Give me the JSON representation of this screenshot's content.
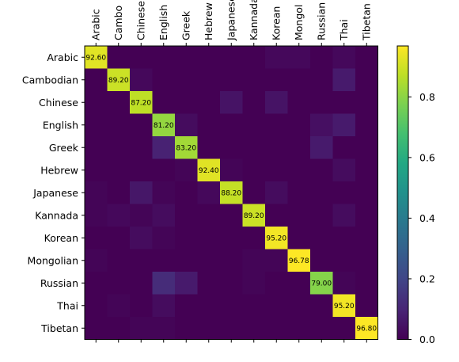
{
  "chart_data": {
    "type": "heatmap",
    "x_categories": [
      "Arabic",
      "Cambo",
      "Chinese",
      "English",
      "Greek",
      "Hebrew",
      "Japanese",
      "Kannada",
      "Korean",
      "Mongol",
      "Russian",
      "Thai",
      "Tibetan"
    ],
    "y_categories": [
      "Arabic",
      "Cambodian",
      "Chinese",
      "English",
      "Greek",
      "Hebrew",
      "Japanese",
      "Kannada",
      "Korean",
      "Mongolian",
      "Russian",
      "Thai",
      "Tibetan"
    ],
    "matrix": [
      [
        0.926,
        0.0,
        0.0,
        0.0,
        0.0,
        0.0,
        0.0,
        0.0,
        0.02,
        0.02,
        0.0,
        0.02,
        0.0
      ],
      [
        0.0,
        0.892,
        0.02,
        0.0,
        0.0,
        0.0,
        0.0,
        0.0,
        0.0,
        0.0,
        0.0,
        0.07,
        0.0
      ],
      [
        0.0,
        0.0,
        0.872,
        0.0,
        0.0,
        0.0,
        0.05,
        0.0,
        0.05,
        0.0,
        0.0,
        0.0,
        0.0
      ],
      [
        0.0,
        0.0,
        0.0,
        0.812,
        0.03,
        0.0,
        0.0,
        0.0,
        0.0,
        0.0,
        0.04,
        0.07,
        0.0
      ],
      [
        0.0,
        0.0,
        0.0,
        0.09,
        0.832,
        0.0,
        0.0,
        0.0,
        0.0,
        0.0,
        0.07,
        0.0,
        0.0
      ],
      [
        0.0,
        0.0,
        0.0,
        0.0,
        0.01,
        0.924,
        0.01,
        0.0,
        0.0,
        0.0,
        0.0,
        0.03,
        0.0
      ],
      [
        0.01,
        0.0,
        0.06,
        0.01,
        0.0,
        0.02,
        0.882,
        0.0,
        0.03,
        0.0,
        0.0,
        0.0,
        0.0
      ],
      [
        0.01,
        0.02,
        0.01,
        0.03,
        0.0,
        0.0,
        0.0,
        0.892,
        0.0,
        0.0,
        0.0,
        0.03,
        0.0
      ],
      [
        0.0,
        0.0,
        0.03,
        0.01,
        0.0,
        0.0,
        0.0,
        0.0,
        0.952,
        0.0,
        0.0,
        0.0,
        0.0
      ],
      [
        0.01,
        0.0,
        0.0,
        0.0,
        0.0,
        0.0,
        0.0,
        0.01,
        0.01,
        0.968,
        0.0,
        0.0,
        0.0
      ],
      [
        0.0,
        0.0,
        0.0,
        0.12,
        0.07,
        0.0,
        0.0,
        0.01,
        0.0,
        0.0,
        0.79,
        0.01,
        0.0
      ],
      [
        0.0,
        0.01,
        0.0,
        0.03,
        0.0,
        0.0,
        0.0,
        0.0,
        0.0,
        0.0,
        0.0,
        0.952,
        0.0
      ],
      [
        0.0,
        0.0,
        0.01,
        0.01,
        0.0,
        0.0,
        0.0,
        0.0,
        0.0,
        0.0,
        0.0,
        0.0,
        0.968
      ]
    ],
    "diagonal_labels": [
      "92.60",
      "89.20",
      "87.20",
      "81.20",
      "83.20",
      "92.40",
      "88.20",
      "89.20",
      "95.20",
      "96.78",
      "79.00",
      "95.20",
      "96.80"
    ],
    "colorbar": {
      "colormap": "viridis",
      "range": [
        0.0,
        0.968
      ],
      "ticks": [
        0.0,
        0.2,
        0.4,
        0.6,
        0.8
      ],
      "tick_labels": [
        "0.0",
        "0.2",
        "0.4",
        "0.6",
        "0.8"
      ]
    },
    "title": "",
    "xlabel": "",
    "ylabel": ""
  }
}
